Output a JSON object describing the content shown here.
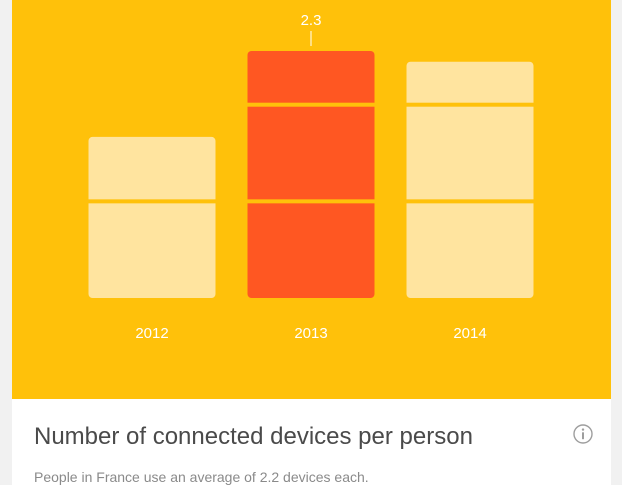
{
  "chart_data": {
    "type": "bar",
    "categories": [
      "2012",
      "2013",
      "2014"
    ],
    "values": [
      1.5,
      2.3,
      2.2
    ],
    "highlight_index": 1,
    "value_label": "2.3",
    "ylim": [
      0,
      2.3
    ],
    "grid": false
  },
  "colors": {
    "background": "#FFC10A",
    "bar": "#FFE49F",
    "bar_highlight": "#FF5722",
    "divider": "#FFC10A",
    "label_text": "#FFFFFF"
  },
  "card": {
    "title": "Number of connected devices per person",
    "subtitle": "People in France use an average of 2.2 devices each.",
    "info_icon": "info-icon"
  }
}
